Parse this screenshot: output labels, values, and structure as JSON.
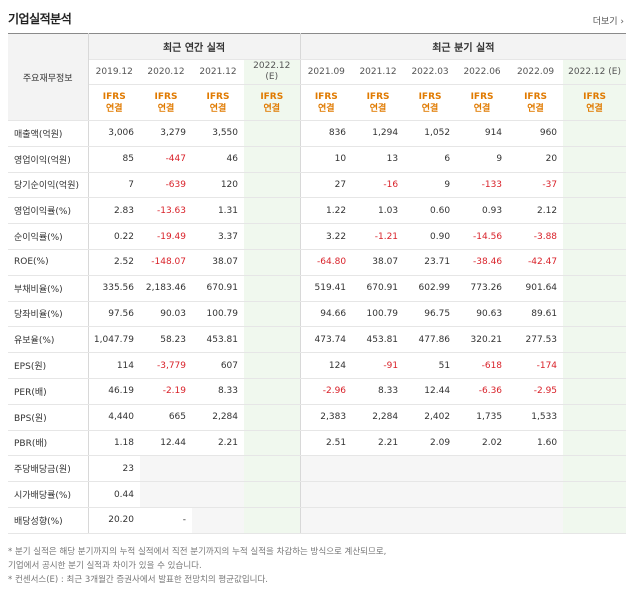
{
  "title": "기업실적분석",
  "more_label": "더보기 ›",
  "table": {
    "corner_label": "주요재무정보",
    "annual_label": "최근 연간 실적",
    "quarter_label": "최근 분기 실적",
    "periods": [
      {
        "label": "2019.12",
        "est": false
      },
      {
        "label": "2020.12",
        "est": false
      },
      {
        "label": "2021.12",
        "est": false
      },
      {
        "label": "2022.12",
        "sub": "(E)",
        "est": true
      },
      {
        "label": "2021.09",
        "est": false
      },
      {
        "label": "2021.12",
        "est": false
      },
      {
        "label": "2022.03",
        "est": false
      },
      {
        "label": "2022.06",
        "est": false
      },
      {
        "label": "2022.09",
        "est": false
      },
      {
        "label": "2022.12 (E)",
        "est": true
      }
    ],
    "ifrs_line1": "IFRS",
    "ifrs_line2": "연결",
    "rows": [
      {
        "label": "매출액(억원)",
        "values": [
          "3,006",
          "3,279",
          "3,550",
          "",
          "836",
          "1,294",
          "1,052",
          "914",
          "960",
          ""
        ]
      },
      {
        "label": "영업이익(억원)",
        "values": [
          "85",
          "-447",
          "46",
          "",
          "10",
          "13",
          "6",
          "9",
          "20",
          ""
        ]
      },
      {
        "label": "당기순이익(억원)",
        "values": [
          "7",
          "-639",
          "120",
          "",
          "27",
          "-16",
          "9",
          "-133",
          "-37",
          ""
        ]
      },
      {
        "label": "영업이익률(%)",
        "values": [
          "2.83",
          "-13.63",
          "1.31",
          "",
          "1.22",
          "1.03",
          "0.60",
          "0.93",
          "2.12",
          ""
        ]
      },
      {
        "label": "순이익률(%)",
        "values": [
          "0.22",
          "-19.49",
          "3.37",
          "",
          "3.22",
          "-1.21",
          "0.90",
          "-14.56",
          "-3.88",
          ""
        ]
      },
      {
        "label": "ROE(%)",
        "values": [
          "2.52",
          "-148.07",
          "38.07",
          "",
          "-64.80",
          "38.07",
          "23.71",
          "-38.46",
          "-42.47",
          ""
        ]
      },
      {
        "label": "부채비율(%)",
        "values": [
          "335.56",
          "2,183.46",
          "670.91",
          "",
          "519.41",
          "670.91",
          "602.99",
          "773.26",
          "901.64",
          ""
        ]
      },
      {
        "label": "당좌비율(%)",
        "values": [
          "97.56",
          "90.03",
          "100.79",
          "",
          "94.66",
          "100.79",
          "96.75",
          "90.63",
          "89.61",
          ""
        ]
      },
      {
        "label": "유보율(%)",
        "values": [
          "1,047.79",
          "58.23",
          "453.81",
          "",
          "473.74",
          "453.81",
          "477.86",
          "320.21",
          "277.53",
          ""
        ]
      },
      {
        "label": "EPS(원)",
        "values": [
          "114",
          "-3,779",
          "607",
          "",
          "124",
          "-91",
          "51",
          "-618",
          "-174",
          ""
        ]
      },
      {
        "label": "PER(배)",
        "values": [
          "46.19",
          "-2.19",
          "8.33",
          "",
          "-2.96",
          "8.33",
          "12.44",
          "-6.36",
          "-2.95",
          ""
        ]
      },
      {
        "label": "BPS(원)",
        "values": [
          "4,440",
          "665",
          "2,284",
          "",
          "2,383",
          "2,284",
          "2,402",
          "1,735",
          "1,533",
          ""
        ]
      },
      {
        "label": "PBR(배)",
        "values": [
          "1.18",
          "12.44",
          "2.21",
          "",
          "2.51",
          "2.21",
          "2.09",
          "2.02",
          "1.60",
          ""
        ]
      },
      {
        "label": "주당배당금(원)",
        "values": [
          "23",
          "",
          "",
          "",
          "",
          "",
          "",
          "",
          "",
          ""
        ],
        "empty_from": 1
      },
      {
        "label": "시가배당률(%)",
        "values": [
          "0.44",
          "",
          "",
          "",
          "",
          "",
          "",
          "",
          "",
          ""
        ],
        "empty_from": 1
      },
      {
        "label": "배당성향(%)",
        "values": [
          "20.20",
          "-",
          "",
          "",
          "",
          "",
          "",
          "",
          "",
          ""
        ],
        "empty_from": 2
      }
    ]
  },
  "notes": [
    "* 분기 실적은 해당 분기까지의 누적 실적에서 직전 분기까지의 누적 실적을 차감하는 방식으로 계산되므로,",
    "  기업에서 공시한 분기 실적과 차이가 있을 수 있습니다.",
    "* 컨센서스(E) : 최근 3개월간 증권사에서 발표한 전망치의 평균값입니다."
  ],
  "colors": {
    "negative": "#d9222a",
    "ifrs": "#e07a00",
    "estimate_bg": "#f0f8ee"
  }
}
